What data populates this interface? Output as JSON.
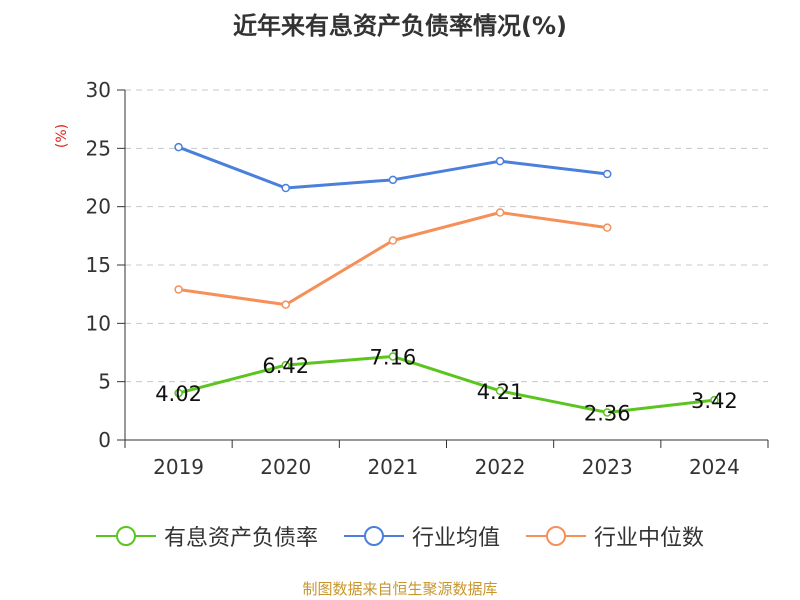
{
  "chart_data": {
    "type": "line",
    "title": "近年来有息资产负债率情况(%)",
    "ylabel": "(%)",
    "xlabel": "",
    "categories": [
      "2019",
      "2020",
      "2021",
      "2022",
      "2023",
      "2024"
    ],
    "ylim": [
      0,
      30
    ],
    "yticks": [
      0,
      5,
      10,
      15,
      20,
      25,
      30
    ],
    "grid": true,
    "legend_position": "bottom",
    "series": [
      {
        "name": "有息资产负债率",
        "color": "#5cc41f",
        "values": [
          4.02,
          6.42,
          7.16,
          4.21,
          2.36,
          3.42
        ],
        "labels": [
          "4.02",
          "6.42",
          "7.16",
          "4.21",
          "2.36",
          "3.42"
        ]
      },
      {
        "name": "行业均值",
        "color": "#4a7fdc",
        "values": [
          25.1,
          21.6,
          22.3,
          23.9,
          22.8,
          null
        ]
      },
      {
        "name": "行业中位数",
        "color": "#f5905a",
        "values": [
          12.9,
          11.6,
          17.1,
          19.5,
          18.2,
          null
        ]
      }
    ]
  },
  "source": "制图数据来自恒生聚源数据库"
}
